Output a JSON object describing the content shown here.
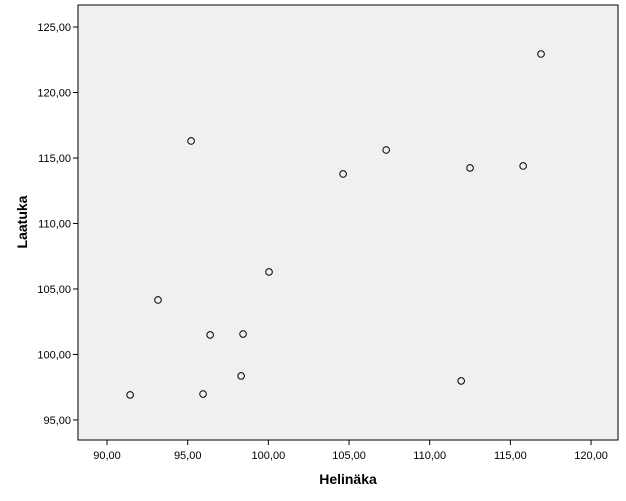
{
  "chart_data": {
    "type": "scatter",
    "x_label": "Helinäka",
    "y_label": "Laatuka",
    "series": [
      {
        "color": "#000000",
        "x": [
          91.43,
          93.16,
          95.21,
          95.95,
          96.39,
          98.31,
          98.43,
          100.04,
          104.63,
          107.3,
          111.95,
          112.5,
          115.79,
          116.9
        ],
        "values": [
          96.91,
          104.16,
          116.3,
          96.98,
          101.49,
          98.36,
          101.56,
          106.3,
          113.78,
          115.61,
          97.98,
          114.24,
          114.39,
          122.94
        ]
      }
    ],
    "xlim": [
      88.2,
      121.67
    ],
    "ylim": [
      93.47,
      126.68
    ],
    "xticks": [
      {
        "value": 90,
        "label": "90,00"
      },
      {
        "value": 95,
        "label": "95,00"
      },
      {
        "value": 100,
        "label": "100,00"
      },
      {
        "value": 105,
        "label": "105,00"
      },
      {
        "value": 110,
        "label": "110,00"
      },
      {
        "value": 115,
        "label": "115,00"
      },
      {
        "value": 120,
        "label": "120,00"
      }
    ],
    "yticks": [
      {
        "value": 95,
        "label": "95,00"
      },
      {
        "value": 100,
        "label": "100,00"
      },
      {
        "value": 105,
        "label": "105,00"
      },
      {
        "value": 110,
        "label": "110,00"
      },
      {
        "value": 115,
        "label": "115,00"
      },
      {
        "value": 120,
        "label": "120,00"
      },
      {
        "value": 125,
        "label": "125,00"
      }
    ],
    "background": "#f0f0f0"
  }
}
